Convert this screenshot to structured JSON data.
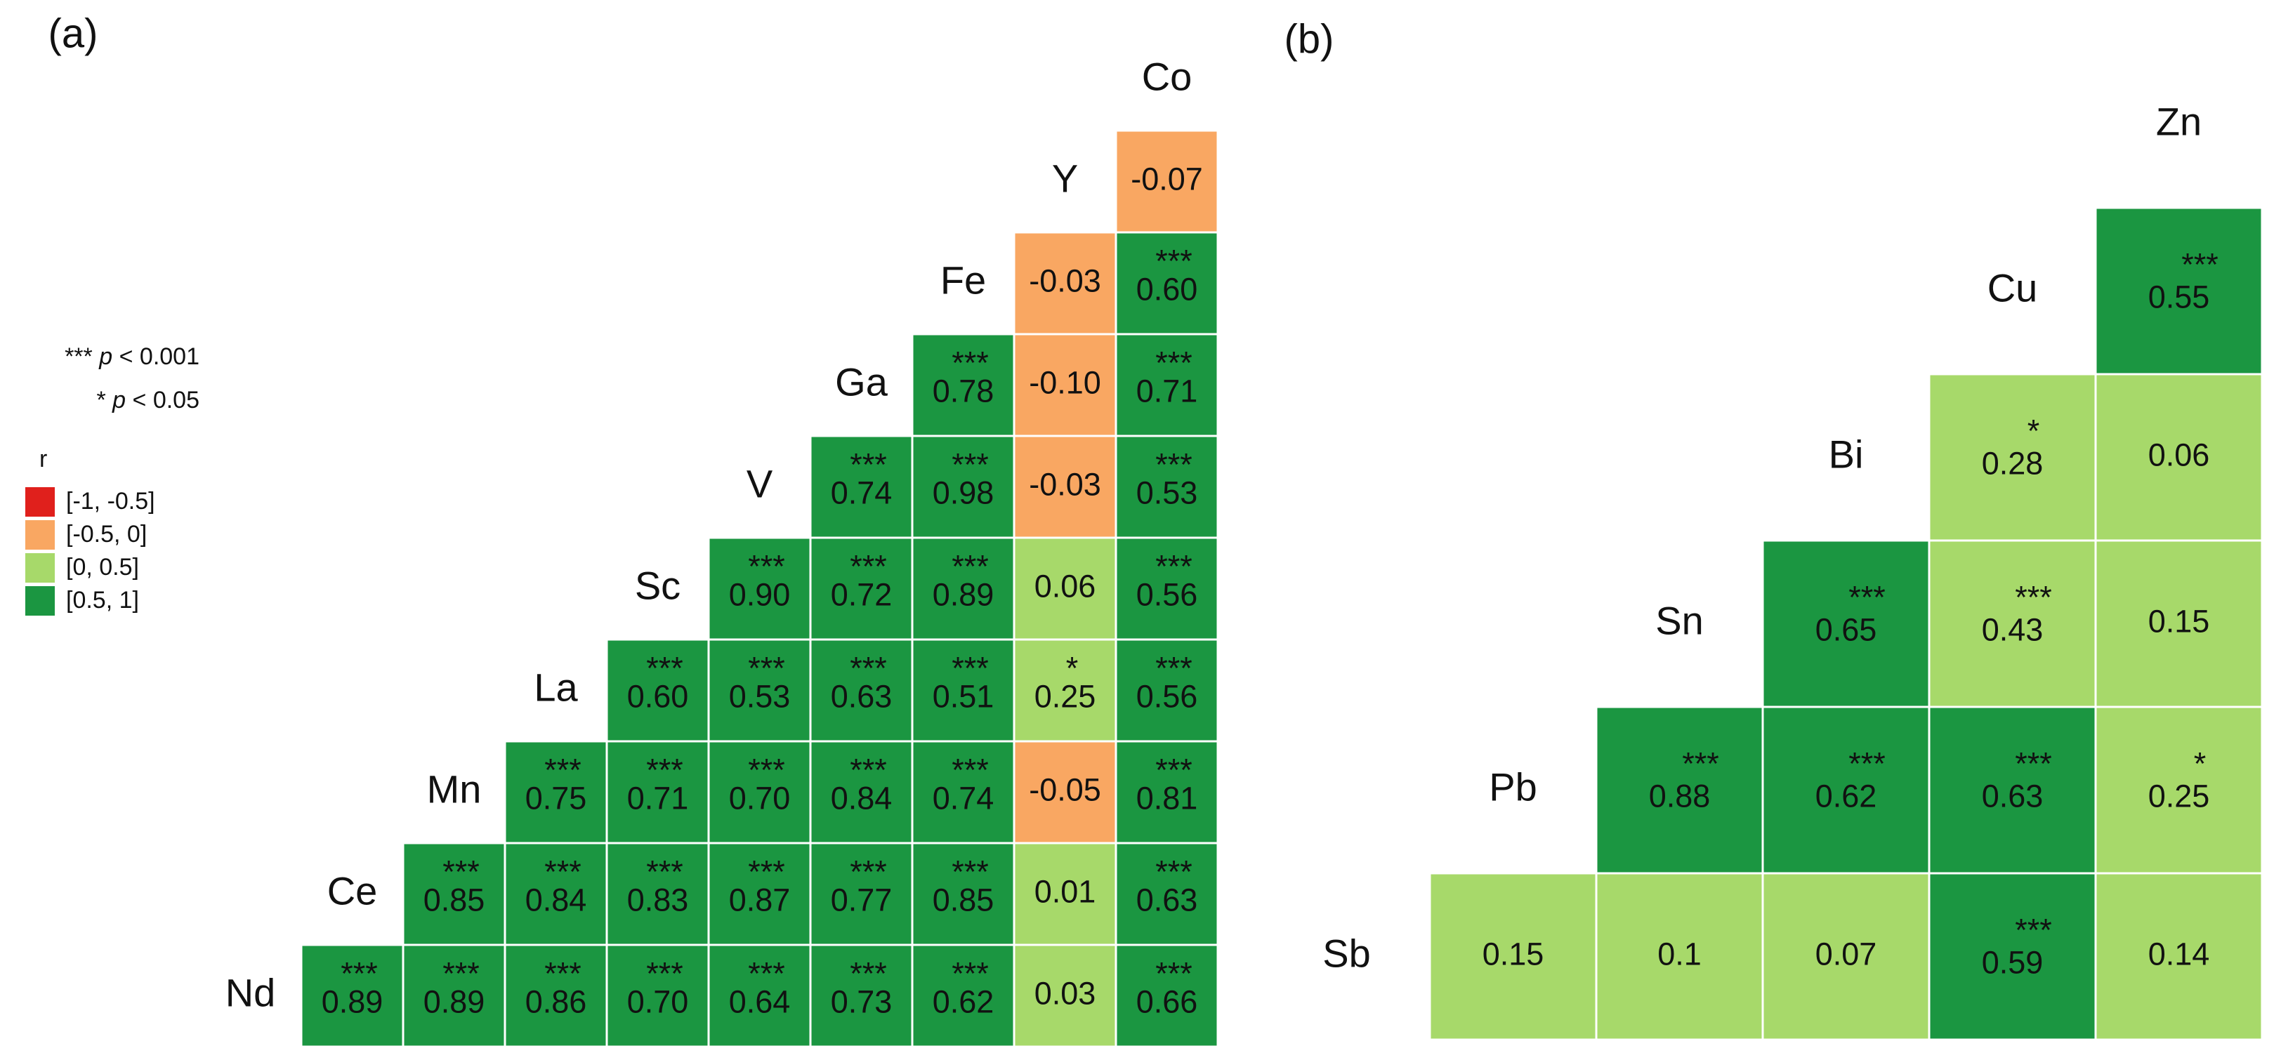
{
  "chart_data": [
    {
      "type": "heatmap",
      "label": "(a)",
      "variables": [
        "Nd",
        "Ce",
        "Mn",
        "La",
        "Sc",
        "V",
        "Ga",
        "Fe",
        "Y",
        "Co"
      ],
      "rows": [
        {
          "values": [
            0.89,
            0.89,
            0.86,
            0.7,
            0.64,
            0.73,
            0.62,
            0.03,
            0.66
          ],
          "value_labels": [
            "0.89",
            "0.89",
            "0.86",
            "0.70",
            "0.64",
            "0.73",
            "0.62",
            "0.03",
            "0.66"
          ],
          "stars": [
            "***",
            "***",
            "***",
            "***",
            "***",
            "***",
            "***",
            null,
            "***"
          ]
        },
        {
          "values": [
            0.85,
            0.84,
            0.83,
            0.87,
            0.77,
            0.85,
            0.01,
            0.63
          ],
          "value_labels": [
            "0.85",
            "0.84",
            "0.83",
            "0.87",
            "0.77",
            "0.85",
            "0.01",
            "0.63"
          ],
          "stars": [
            "***",
            "***",
            "***",
            "***",
            "***",
            "***",
            null,
            "***"
          ]
        },
        {
          "values": [
            0.75,
            0.71,
            0.7,
            0.84,
            0.74,
            -0.05,
            0.81
          ],
          "value_labels": [
            "0.75",
            "0.71",
            "0.70",
            "0.84",
            "0.74",
            "-0.05",
            "0.81"
          ],
          "stars": [
            "***",
            "***",
            "***",
            "***",
            "***",
            null,
            "***"
          ]
        },
        {
          "values": [
            0.6,
            0.53,
            0.63,
            0.51,
            0.25,
            0.56
          ],
          "value_labels": [
            "0.60",
            "0.53",
            "0.63",
            "0.51",
            "0.25",
            "0.56"
          ],
          "stars": [
            "***",
            "***",
            "***",
            "***",
            "*",
            "***"
          ]
        },
        {
          "values": [
            0.9,
            0.72,
            0.89,
            0.06,
            0.56
          ],
          "value_labels": [
            "0.90",
            "0.72",
            "0.89",
            "0.06",
            "0.56"
          ],
          "stars": [
            "***",
            "***",
            "***",
            null,
            "***"
          ]
        },
        {
          "values": [
            0.74,
            0.98,
            -0.03,
            0.53
          ],
          "value_labels": [
            "0.74",
            "0.98",
            "-0.03",
            "0.53"
          ],
          "stars": [
            "***",
            "***",
            null,
            "***"
          ]
        },
        {
          "values": [
            0.78,
            -0.1,
            0.71
          ],
          "value_labels": [
            "0.78",
            "-0.10",
            "0.71"
          ],
          "stars": [
            "***",
            null,
            "***"
          ]
        },
        {
          "values": [
            -0.03,
            0.6
          ],
          "value_labels": [
            "-0.03",
            "0.60"
          ],
          "stars": [
            null,
            "***"
          ]
        },
        {
          "values": [
            -0.07
          ],
          "value_labels": [
            "-0.07"
          ],
          "stars": [
            null
          ]
        }
      ],
      "significance": [
        {
          "stars": "***",
          "p": "p",
          "text": "< 0.001"
        },
        {
          "stars": "*",
          "p": "p",
          "text": "< 0.05"
        }
      ],
      "legend_title": "r",
      "legend": [
        {
          "label": "[-1, -0.5]",
          "color": "#e0201c",
          "min": -1,
          "max": -0.5
        },
        {
          "label": "[-0.5, 0]",
          "color": "#f9a762",
          "min": -0.5,
          "max": 0
        },
        {
          "label": "[0, 0.5]",
          "color": "#a7d96a",
          "min": 0,
          "max": 0.5
        },
        {
          "label": "[0.5, 1]",
          "color": "#1b9641",
          "min": 0.5,
          "max": 1
        }
      ]
    },
    {
      "type": "heatmap",
      "label": "(b)",
      "variables": [
        "Sb",
        "Pb",
        "Sn",
        "Bi",
        "Cu",
        "Zn"
      ],
      "rows": [
        {
          "values": [
            0.15,
            0.1,
            0.07,
            0.59,
            0.14
          ],
          "stars": [
            null,
            null,
            null,
            "***",
            null
          ]
        },
        {
          "values": [
            0.88,
            0.62,
            0.63,
            0.25
          ],
          "stars": [
            "***",
            "***",
            "***",
            "*"
          ]
        },
        {
          "values": [
            0.65,
            0.43,
            0.15
          ],
          "stars": [
            "***",
            "***",
            null
          ]
        },
        {
          "values": [
            0.28,
            0.06
          ],
          "stars": [
            "*",
            null
          ]
        },
        {
          "values": [
            0.55
          ],
          "stars": [
            "***"
          ]
        }
      ]
    }
  ]
}
